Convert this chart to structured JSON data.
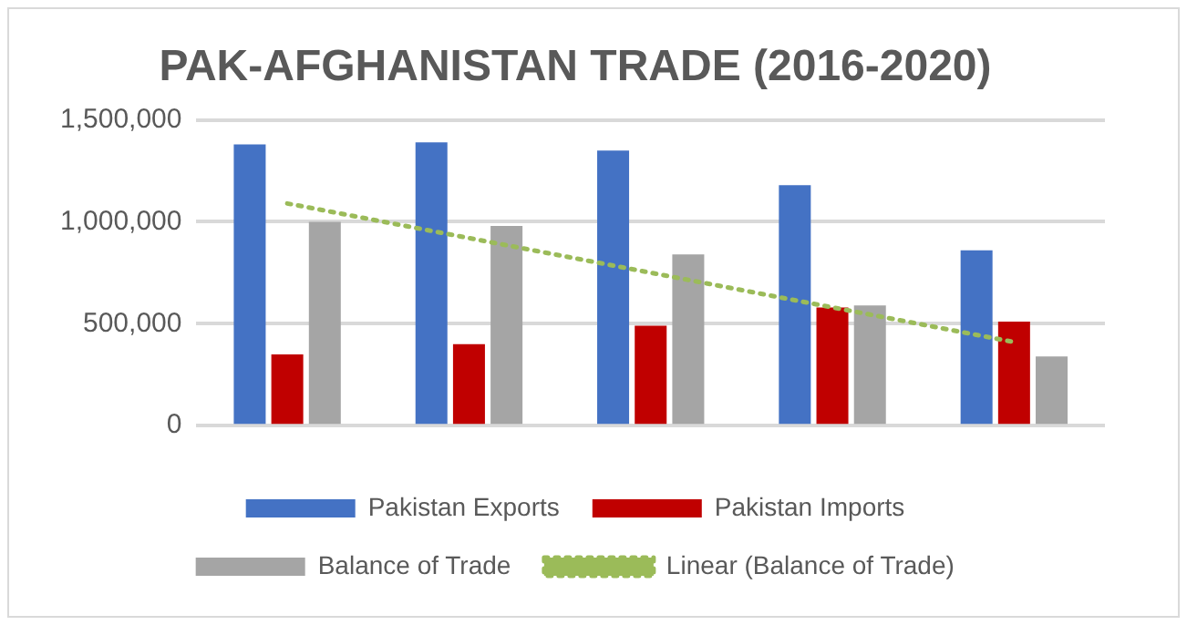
{
  "chart_data": {
    "type": "bar",
    "title": "PAK-AFGHANISTAN TRADE (2016-2020)",
    "categories": [
      null,
      null,
      null,
      null,
      null
    ],
    "series": [
      {
        "name": "Pakistan Exports",
        "color": "#4472c4",
        "values": [
          1380000,
          1390000,
          1350000,
          1180000,
          860000
        ]
      },
      {
        "name": "Pakistan Imports",
        "color": "#c00000",
        "values": [
          350000,
          400000,
          490000,
          580000,
          510000
        ]
      },
      {
        "name": "Balance of Trade",
        "color": "#a5a5a5",
        "values": [
          1000000,
          980000,
          840000,
          590000,
          340000
        ]
      },
      {
        "name": "Linear (Balance of Trade)",
        "type": "line",
        "color": "#9bbb59",
        "line_style": "dotted",
        "marker": "none",
        "values": [
          1090000,
          920000,
          750000,
          580000,
          410000
        ]
      }
    ],
    "ylim": [
      0,
      1500000
    ],
    "yticks": [
      {
        "value": 0,
        "label": "0"
      },
      {
        "value": 500000,
        "label": "500,000"
      },
      {
        "value": 1000000,
        "label": "1,000,000"
      },
      {
        "value": 1500000,
        "label": "1,500,000"
      }
    ],
    "grid": "y",
    "legend": "bottom"
  }
}
